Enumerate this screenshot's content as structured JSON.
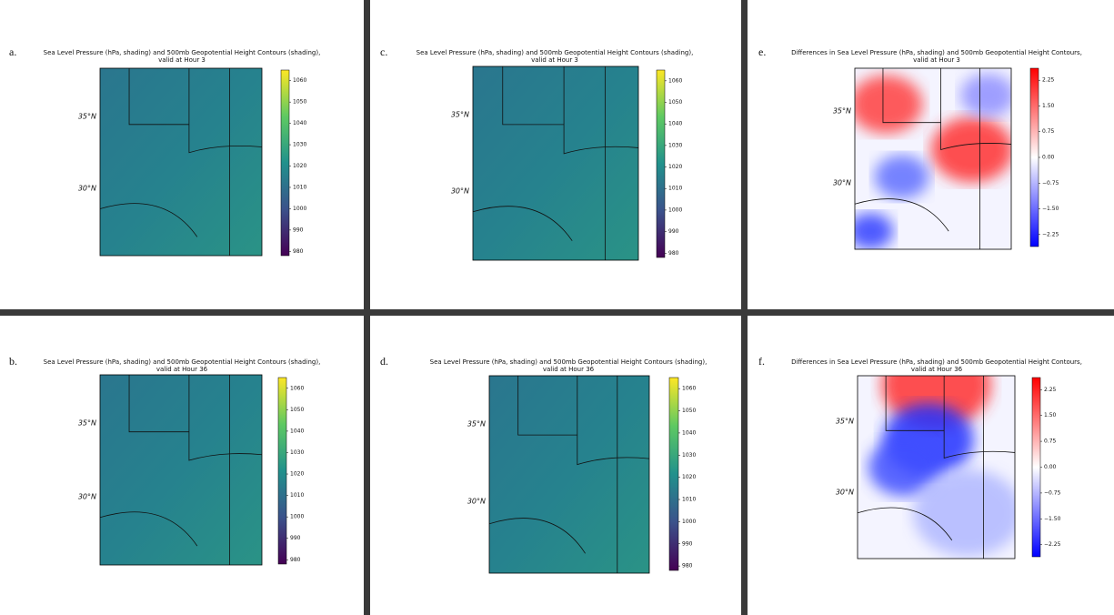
{
  "panels": [
    {
      "letter": "a.",
      "title": [
        "Sea Level Pressure (hPa, shading) and 500mb Geopotential Height Contours (shading),",
        "valid at Hour 3"
      ],
      "latitudes": [
        "35°N",
        "30°N"
      ],
      "colormap": "viridis",
      "colorbar": {
        "lim": [
          978,
          1065
        ],
        "ticks": [
          980,
          990,
          1000,
          1010,
          1020,
          1030,
          1040,
          1050,
          1060
        ]
      }
    },
    {
      "letter": "c.",
      "title": [
        "Sea Level Pressure (hPa, shading) and 500mb Geopotential Height Contours (shading),",
        "valid at Hour 3"
      ],
      "latitudes": [
        "35°N",
        "30°N"
      ],
      "colormap": "viridis",
      "colorbar": {
        "lim": [
          978,
          1065
        ],
        "ticks": [
          980,
          990,
          1000,
          1010,
          1020,
          1030,
          1040,
          1050,
          1060
        ]
      }
    },
    {
      "letter": "e.",
      "title": [
        "Differences in Sea Level Pressure (hPa, shading) and 500mb Geopotential Height Contours,",
        "valid at Hour 3"
      ],
      "latitudes": [
        "35°N",
        "30°N"
      ],
      "colormap": "bwr",
      "colorbar": {
        "lim": [
          -2.6,
          2.6
        ],
        "ticks": [
          {
            "value": -2.25,
            "label": "−2.25"
          },
          {
            "value": -1.5,
            "label": "−1.50"
          },
          {
            "value": -0.75,
            "label": "−0.75"
          },
          {
            "value": 0,
            "label": "0.00"
          },
          {
            "value": 0.75,
            "label": "0.75"
          },
          {
            "value": 1.5,
            "label": "1.50"
          },
          {
            "value": 2.25,
            "label": "2.25"
          }
        ]
      }
    },
    {
      "letter": "b.",
      "title": [
        "Sea Level Pressure (hPa, shading) and 500mb Geopotential Height Contours (shading),",
        "valid at Hour 36"
      ],
      "latitudes": [
        "35°N",
        "30°N"
      ],
      "colormap": "viridis",
      "colorbar": {
        "lim": [
          978,
          1065
        ],
        "ticks": [
          980,
          990,
          1000,
          1010,
          1020,
          1030,
          1040,
          1050,
          1060
        ]
      }
    },
    {
      "letter": "d.",
      "title": [
        "Sea Level Pressure (hPa, shading) and 500mb Geopotential Height Contours (shading),",
        "valid at Hour 36"
      ],
      "latitudes": [
        "35°N",
        "30°N"
      ],
      "colormap": "viridis",
      "colorbar": {
        "lim": [
          978,
          1065
        ],
        "ticks": [
          980,
          990,
          1000,
          1010,
          1020,
          1030,
          1040,
          1050,
          1060
        ]
      }
    },
    {
      "letter": "f.",
      "title": [
        "Differences in Sea Level Pressure (hPa, shading) and 500mb Geopotential Height Contours,",
        "valid at Hour 36"
      ],
      "latitudes": [
        "35°N",
        "30°N"
      ],
      "colormap": "bwr",
      "colorbar": {
        "lim": [
          -2.6,
          2.6
        ],
        "ticks": [
          {
            "value": -2.25,
            "label": "−2.25"
          },
          {
            "value": -1.5,
            "label": "−1.50"
          },
          {
            "value": -0.75,
            "label": "−0.75"
          },
          {
            "value": 0,
            "label": "0.00"
          },
          {
            "value": 0.75,
            "label": "0.75"
          },
          {
            "value": 1.5,
            "label": "1.50"
          },
          {
            "value": 2.25,
            "label": "2.25"
          }
        ]
      }
    }
  ]
}
